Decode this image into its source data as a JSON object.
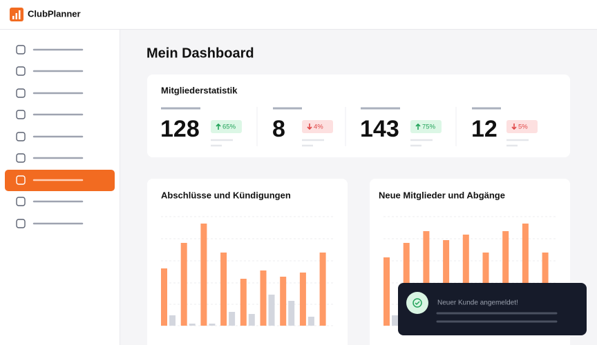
{
  "header": {
    "brand": "ClubPlanner"
  },
  "page": {
    "title": "Mein Dashboard"
  },
  "stats": {
    "title": "Mitgliederstatistik",
    "items": [
      {
        "value": 128,
        "change": "65%",
        "trend": "up"
      },
      {
        "value": 8,
        "change": "4%",
        "trend": "down"
      },
      {
        "value": 143,
        "change": "75%",
        "trend": "up"
      },
      {
        "value": 12,
        "change": "5%",
        "trend": "down"
      }
    ]
  },
  "charts": [
    {
      "title": "Abschlüsse und Kündigungen",
      "series": [
        {
          "color": "#ff9a66",
          "values": [
            83,
            120,
            148,
            106,
            68,
            80,
            71,
            77,
            106
          ]
        },
        {
          "color": "#d3d6de",
          "values": [
            15,
            3,
            3,
            20,
            17,
            45,
            36,
            13,
            null
          ]
        }
      ]
    },
    {
      "title": "Neue Mitglieder und Abgänge",
      "series": [
        {
          "color": "#ff9a66",
          "values": [
            99,
            120,
            137,
            124,
            132,
            106,
            137,
            148,
            106
          ]
        },
        {
          "color": "#d3d6de",
          "values": [
            15,
            null,
            null,
            null,
            null,
            null,
            null,
            null,
            null
          ]
        }
      ]
    }
  ],
  "toast": {
    "message": "Neuer Kunde angemeldet!"
  }
}
